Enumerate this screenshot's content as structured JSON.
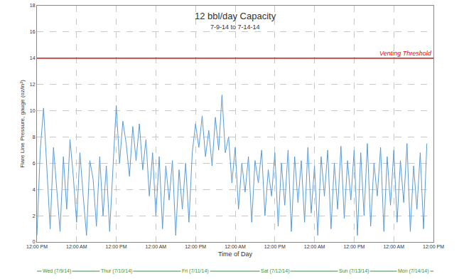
{
  "chart_data": {
    "type": "line",
    "title": "12 bbl/day Capacity",
    "subtitle": "7-9-14 to 7-14-14",
    "x_label": "Time of Day",
    "y_label": "Flare Line Pressure, gauge (oz/in²)",
    "x": [
      0,
      1,
      2,
      3,
      4,
      5,
      6,
      7,
      8,
      9,
      10,
      11,
      12,
      13,
      14,
      15,
      16,
      17,
      18,
      19,
      20,
      21,
      22,
      23,
      24,
      25,
      26,
      27,
      28,
      29,
      30,
      31,
      32,
      33,
      34,
      35,
      36,
      37,
      38,
      39,
      40,
      41,
      42,
      43,
      44,
      45,
      46,
      47,
      48,
      49,
      50,
      51,
      52,
      53,
      54,
      55,
      56,
      57,
      58,
      59,
      60,
      61,
      62,
      63,
      64,
      65,
      66,
      67,
      68,
      69,
      70,
      71,
      72,
      73,
      74,
      75,
      76,
      77,
      78,
      79,
      80,
      81,
      82,
      83,
      84,
      85,
      86,
      87,
      88,
      89,
      90,
      91,
      92,
      93,
      94,
      95,
      96,
      97,
      98,
      99,
      100,
      101,
      102,
      103,
      104,
      105,
      106,
      107,
      108,
      109,
      110,
      111,
      112,
      113,
      114,
      115,
      116,
      117,
      118,
      119,
      120
    ],
    "series": [
      {
        "name": "Flare Line Pressure",
        "color": "#5b9bd5",
        "values": [
          0.5,
          7.0,
          10.2,
          5.5,
          1.0,
          7.2,
          4.0,
          0.8,
          6.5,
          2.5,
          7.8,
          5.0,
          1.5,
          6.8,
          3.5,
          0.5,
          6.2,
          4.8,
          1.2,
          6.5,
          2.0,
          5.8,
          0.8,
          6.0,
          10.4,
          6.0,
          9.2,
          7.5,
          5.0,
          8.8,
          6.2,
          9.0,
          5.5,
          7.8,
          3.5,
          6.8,
          2.0,
          6.5,
          1.0,
          5.8,
          3.2,
          6.2,
          0.5,
          5.5,
          2.5,
          6.0,
          1.5,
          6.8,
          9.0,
          7.2,
          9.6,
          6.5,
          8.5,
          5.8,
          9.5,
          7.0,
          11.2,
          6.8,
          8.0,
          4.5,
          7.2,
          2.5,
          6.0,
          3.8,
          6.5,
          1.5,
          6.2,
          4.5,
          7.0,
          2.0,
          5.5,
          3.5,
          6.8,
          1.2,
          6.0,
          2.8,
          7.0,
          0.8,
          6.5,
          3.0,
          6.2,
          1.5,
          7.2,
          2.2,
          5.8,
          0.5,
          6.5,
          3.5,
          7.0,
          1.0,
          6.0,
          2.5,
          7.3,
          1.8,
          6.2,
          3.2,
          7.0,
          0.5,
          6.8,
          2.0,
          7.5,
          1.2,
          6.0,
          3.5,
          7.2,
          0.8,
          6.5,
          2.8,
          7.0,
          1.5,
          6.2,
          3.0,
          7.5,
          0.8,
          5.8,
          2.5,
          6.8,
          1.0,
          7.5,
          null,
          null
        ]
      }
    ],
    "xlim": [
      0,
      120
    ],
    "xticks": [
      {
        "value": 0,
        "label": "12:00 PM"
      },
      {
        "value": 12,
        "label": "12:00 AM"
      },
      {
        "value": 24,
        "label": "12:00 PM"
      },
      {
        "value": 36,
        "label": "12:00 AM"
      },
      {
        "value": 48,
        "label": "12:00 PM"
      },
      {
        "value": 60,
        "label": "12:00 AM"
      },
      {
        "value": 72,
        "label": "12:00 PM"
      },
      {
        "value": 84,
        "label": "12:00 AM"
      },
      {
        "value": 96,
        "label": "12:00 PM"
      },
      {
        "value": 108,
        "label": "12:00 AM"
      },
      {
        "value": 120,
        "label": "12:00 PM"
      }
    ],
    "ylim": [
      0,
      18
    ],
    "yticks": [
      0,
      2,
      4,
      6,
      8,
      10,
      12,
      14,
      16,
      18
    ],
    "grid": true,
    "reference_lines": [
      {
        "value": 14,
        "label": "Venting Threshold",
        "color": "#ff0000"
      }
    ],
    "annotations": [
      {
        "text": "Wed (7/9/14)",
        "x": 6
      },
      {
        "text": "Thur (7/10/14)",
        "x": 24
      },
      {
        "text": "Fri (7/11/14)",
        "x": 48
      },
      {
        "text": "Sat (7/12/14)",
        "x": 72
      },
      {
        "text": "Sun (7/13/14)",
        "x": 96
      },
      {
        "text": "Mon (7/14/14)",
        "x": 114
      }
    ]
  }
}
